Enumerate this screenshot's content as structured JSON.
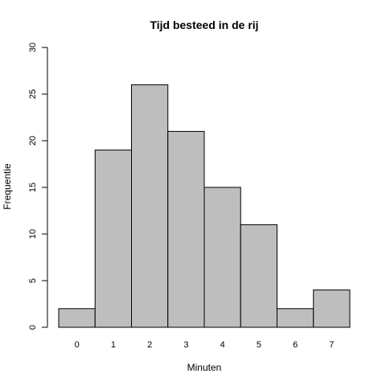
{
  "chart_data": {
    "type": "bar",
    "title": "Tijd besteed in de rij",
    "xlabel": "Minuten",
    "ylabel": "Frequentie",
    "categories": [
      "0",
      "1",
      "2",
      "3",
      "4",
      "5",
      "6",
      "7"
    ],
    "values": [
      2,
      19,
      26,
      21,
      15,
      11,
      2,
      4
    ],
    "ylim": [
      0,
      30
    ],
    "yticks": [
      0,
      5,
      10,
      15,
      20,
      25,
      30
    ],
    "grid": false,
    "bar_color": "#bebebe",
    "bar_border_color": "#000000"
  }
}
